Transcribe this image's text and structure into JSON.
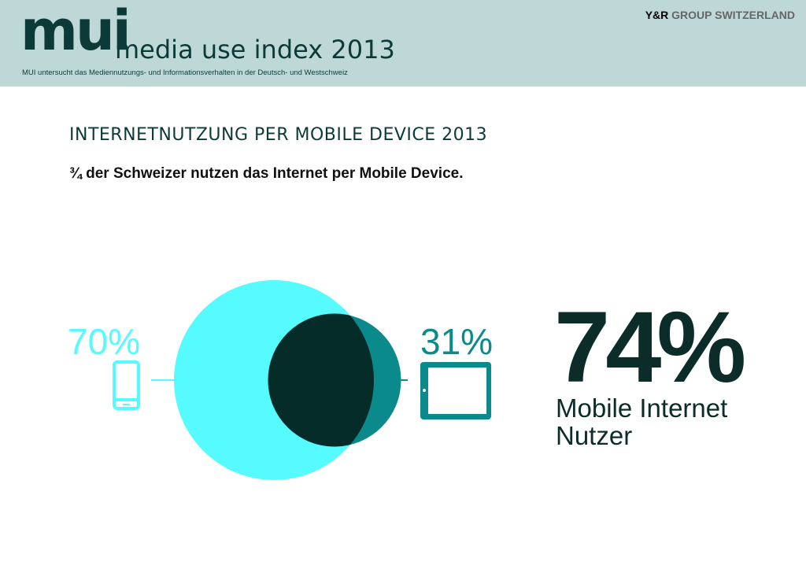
{
  "header": {
    "logo": "mui",
    "title": "media use index 2013",
    "subtitle": "MUI untersucht das Mediennutzungs- und Informationsverhalten in der Deutsch- und Westschweiz",
    "brand_yr": "Y&R",
    "brand_group": "GROUP SWITZERLAND"
  },
  "colors": {
    "header_bg": "#bed8d8",
    "smartphone": "#56fbff",
    "tablet": "#0a8a8a",
    "overlap": "#062c2a",
    "text_dark": "#0c3a38"
  },
  "chart_data": {
    "type": "venn",
    "title": "INTERNETNUTZUNG PER MOBILE DEVICE 2013",
    "subtitle": "¾ der Schweizer nutzen das Internet per Mobile Device.",
    "sets": [
      {
        "label": "70%",
        "value": 70,
        "icon": "smartphone-icon",
        "color": "#56fbff"
      },
      {
        "label": "31%",
        "value": 31,
        "icon": "tablet-icon",
        "color": "#0a8a8a"
      }
    ],
    "overlap_color": "#062c2a",
    "total": {
      "label": "74%",
      "value": 74,
      "caption": "Mobile Internet Nutzer"
    }
  }
}
